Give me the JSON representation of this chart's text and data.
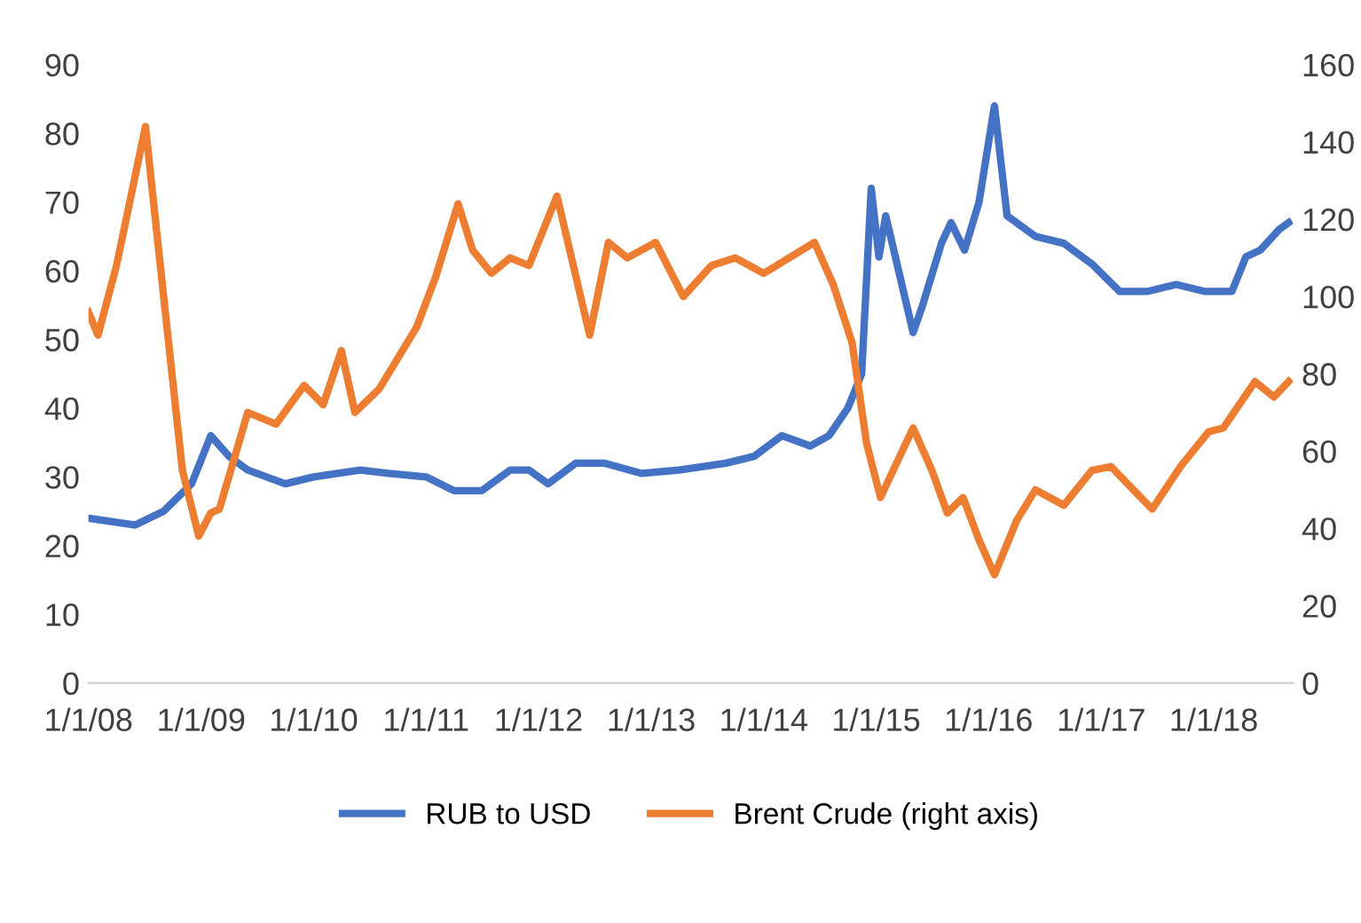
{
  "chart_data": {
    "type": "line",
    "legend": "bottom",
    "grid": false,
    "line_style": "solid",
    "marker": "none",
    "xlim": [
      "2008-01-01",
      "2018-09-15"
    ],
    "xticks": [
      {
        "value": "2008-01-01",
        "label": "1/1/08"
      },
      {
        "value": "2009-01-01",
        "label": "1/1/09"
      },
      {
        "value": "2010-01-01",
        "label": "1/1/10"
      },
      {
        "value": "2011-01-01",
        "label": "1/1/11"
      },
      {
        "value": "2012-01-01",
        "label": "1/1/12"
      },
      {
        "value": "2013-01-01",
        "label": "1/1/13"
      },
      {
        "value": "2014-01-01",
        "label": "1/1/14"
      },
      {
        "value": "2015-01-01",
        "label": "1/1/15"
      },
      {
        "value": "2016-01-01",
        "label": "1/1/16"
      },
      {
        "value": "2017-01-01",
        "label": "1/1/17"
      },
      {
        "value": "2018-01-01",
        "label": "1/1/18"
      }
    ],
    "ylim": [
      0,
      90
    ],
    "yticks": [
      0,
      10,
      20,
      30,
      40,
      50,
      60,
      70,
      80,
      90
    ],
    "y2lim": [
      0,
      160
    ],
    "y2ticks": [
      0,
      20,
      40,
      60,
      80,
      100,
      120,
      140,
      160
    ],
    "series": [
      {
        "name": "RUB to USD",
        "color": "#4472c4",
        "x": [
          "2008-01-01",
          "2008-06-01",
          "2008-09-01",
          "2008-12-01",
          "2009-02-01",
          "2009-04-01",
          "2009-06-01",
          "2009-10-01",
          "2010-01-01",
          "2010-06-01",
          "2010-09-01",
          "2011-01-01",
          "2011-04-01",
          "2011-07-01",
          "2011-10-01",
          "2011-12-01",
          "2012-02-01",
          "2012-05-01",
          "2012-08-01",
          "2012-12-01",
          "2013-04-01",
          "2013-09-01",
          "2013-12-01",
          "2014-03-01",
          "2014-06-01",
          "2014-08-01",
          "2014-10-01",
          "2014-11-15",
          "2014-12-16",
          "2015-01-10",
          "2015-02-01",
          "2015-05-01",
          "2015-06-01",
          "2015-08-01",
          "2015-09-01",
          "2015-10-15",
          "2015-12-01",
          "2016-01-20",
          "2016-03-01",
          "2016-06-01",
          "2016-09-01",
          "2016-12-01",
          "2017-03-01",
          "2017-06-01",
          "2017-09-01",
          "2017-12-01",
          "2018-03-01",
          "2018-04-15",
          "2018-06-01",
          "2018-08-01",
          "2018-09-01"
        ],
        "values": [
          24,
          23,
          25,
          29,
          36,
          33,
          31,
          29,
          30,
          31,
          30.5,
          30,
          28,
          28,
          31,
          31,
          29,
          32,
          32,
          30.5,
          31,
          32,
          33,
          36,
          34.5,
          36,
          40,
          45,
          72,
          62,
          68,
          51,
          55,
          64,
          67,
          63,
          70,
          84,
          68,
          65,
          64,
          61,
          57,
          57,
          58,
          57,
          57,
          62,
          63,
          66,
          67
        ]
      },
      {
        "name": "Brent Crude (right axis)",
        "axis": "y2",
        "color": "#ed7d31",
        "x": [
          "2008-01-01",
          "2008-02-01",
          "2008-04-01",
          "2008-07-04",
          "2008-09-01",
          "2008-11-01",
          "2008-12-24",
          "2009-02-01",
          "2009-03-01",
          "2009-06-01",
          "2009-09-01",
          "2009-12-01",
          "2010-02-01",
          "2010-04-01",
          "2010-05-15",
          "2010-08-01",
          "2010-12-01",
          "2011-02-01",
          "2011-04-15",
          "2011-06-01",
          "2011-08-01",
          "2011-10-01",
          "2011-12-01",
          "2012-03-01",
          "2012-06-15",
          "2012-08-15",
          "2012-10-15",
          "2013-01-15",
          "2013-04-15",
          "2013-07-15",
          "2013-10-01",
          "2014-01-01",
          "2014-06-15",
          "2014-08-15",
          "2014-10-15",
          "2014-12-01",
          "2015-01-15",
          "2015-05-01",
          "2015-07-01",
          "2015-08-20",
          "2015-10-10",
          "2015-12-01",
          "2016-01-20",
          "2016-04-01",
          "2016-06-01",
          "2016-09-01",
          "2016-12-01",
          "2017-02-01",
          "2017-06-15",
          "2017-09-15",
          "2017-12-15",
          "2018-02-01",
          "2018-05-15",
          "2018-07-15",
          "2018-09-01"
        ],
        "values": [
          96,
          90,
          108,
          144,
          100,
          55,
          38,
          44,
          45,
          70,
          67,
          77,
          72,
          86,
          70,
          76,
          92,
          105,
          124,
          112,
          106,
          110,
          108,
          126,
          90,
          114,
          110,
          114,
          100,
          108,
          110,
          106,
          114,
          103,
          88,
          62,
          48,
          66,
          55,
          44,
          48,
          37,
          28,
          42,
          50,
          46,
          55,
          56,
          45,
          56,
          65,
          66,
          78,
          74,
          78
        ]
      }
    ]
  }
}
